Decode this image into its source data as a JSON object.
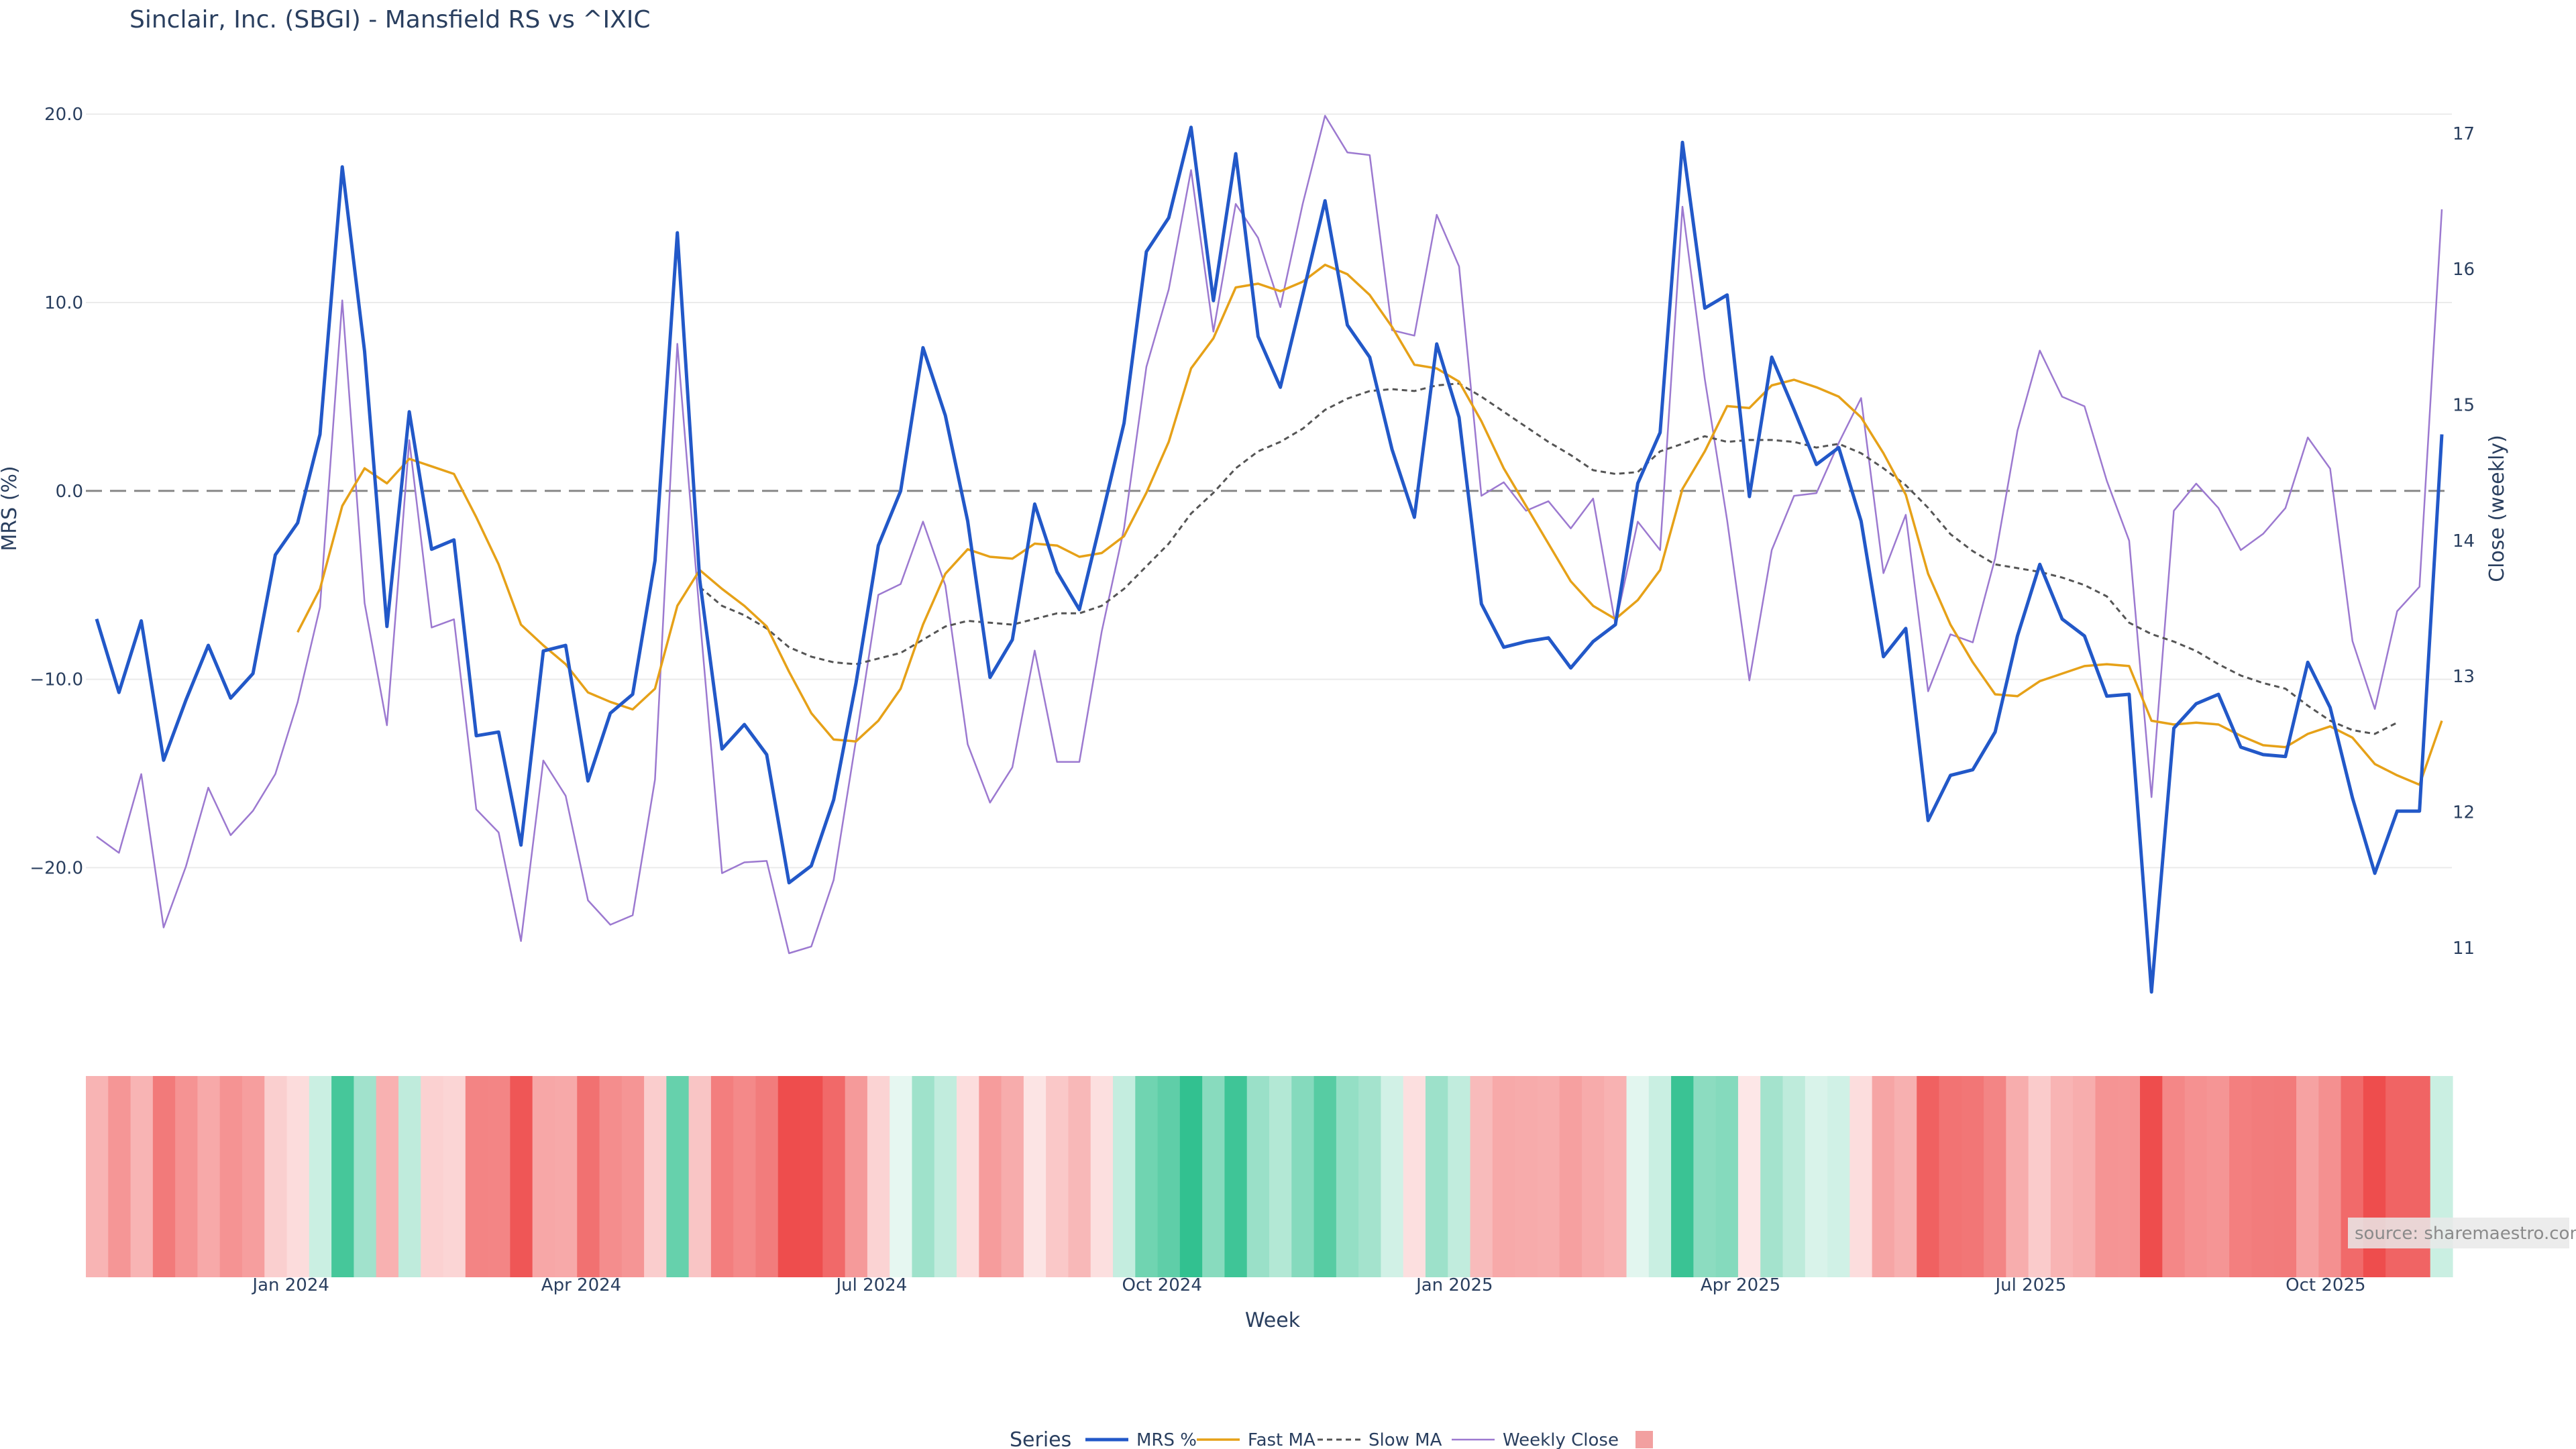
{
  "chart_data": {
    "type": "line",
    "title": "Sinclair, Inc. (SBGI) - Mansfield RS vs ^IXIC",
    "xlabel": "Week",
    "ylabel_left": "MRS (%)",
    "ylabel_right": "Close (weekly)",
    "y_left_ticks": [
      "20.0",
      "10.0",
      "0.0",
      "−10.0",
      "−20.0"
    ],
    "y_left_tick_values": [
      20,
      10,
      0,
      -10,
      -20
    ],
    "y_right_ticks": [
      "17",
      "16",
      "15",
      "14",
      "13",
      "12",
      "11"
    ],
    "y_right_tick_values": [
      17,
      16,
      15,
      14,
      13,
      12,
      11
    ],
    "ylim_left": [
      -27.5,
      21.5
    ],
    "ylim_right": [
      10.55,
      17.35
    ],
    "x_ticks": [
      "Jan 2024",
      "Apr 2024",
      "Jul 2024",
      "Oct 2024",
      "Jan 2025",
      "Apr 2025",
      "Jul 2025",
      "Oct 2025"
    ],
    "x_tick_week_index": [
      8.7,
      21.7,
      34.7,
      47.7,
      60.8,
      73.6,
      86.6,
      99.8
    ],
    "zero_line": 0,
    "grid": true,
    "legend": {
      "title": "Series",
      "position": "bottom-center",
      "entries": [
        "MRS %",
        "Fast MA",
        "Slow MA",
        "Weekly Close",
        ""
      ]
    },
    "source": "source: sharemaestro.com",
    "colors": {
      "mrs": "#2258c8",
      "fast_ma": "#e6a118",
      "slow_ma": "#555555",
      "weekly_close": "#9c79d0",
      "positive": "#2cbf8c",
      "negative": "#ee4d4d"
    },
    "series": [
      {
        "name": "MRS %",
        "values": [
          -6.8,
          -10.7,
          -6.9,
          -14.3,
          -11.1,
          -8.2,
          -11.0,
          -9.7,
          -3.4,
          -1.7,
          3.0,
          17.2,
          7.4,
          -7.2,
          4.2,
          -3.1,
          -2.6,
          -13.0,
          -12.8,
          -18.8,
          -8.5,
          -8.2,
          -15.4,
          -11.8,
          -10.8,
          -3.7,
          13.7,
          -4.7,
          -13.7,
          -12.4,
          -14.0,
          -20.8,
          -19.9,
          -16.4,
          -10.2,
          -2.9,
          0.0,
          7.6,
          4.0,
          -1.6,
          -9.9,
          -7.9,
          -0.7,
          -4.3,
          -6.3,
          -1.4,
          3.6,
          12.7,
          14.5,
          19.3,
          10.1,
          17.9,
          8.2,
          5.5,
          10.4,
          15.4,
          8.8,
          7.1,
          2.2,
          -1.4,
          7.8,
          3.9,
          -6.0,
          -8.3,
          -8.0,
          -7.8,
          -9.4,
          -8.0,
          -7.1,
          0.4,
          3.1,
          18.5,
          9.7,
          10.4,
          -0.3,
          7.1,
          4.3,
          1.4,
          2.3,
          -1.6,
          -8.8,
          -7.3,
          -17.5,
          -15.1,
          -14.8,
          -12.8,
          -7.7,
          -3.9,
          -6.8,
          -7.7,
          -10.9,
          -10.8,
          -26.6,
          -12.6,
          -11.3,
          -10.8,
          -13.6,
          -14.0,
          -14.1,
          -9.1,
          -11.5,
          -16.3,
          -20.3,
          -17.0,
          -17.0,
          3.0
        ]
      },
      {
        "name": "Fast MA",
        "values": [
          null,
          null,
          null,
          null,
          null,
          null,
          null,
          null,
          null,
          -7.5,
          -5.2,
          -0.8,
          1.2,
          0.4,
          1.7,
          1.3,
          0.9,
          -1.4,
          -3.9,
          -7.1,
          -8.2,
          -9.2,
          -10.7,
          -11.2,
          -11.6,
          -10.5,
          -6.1,
          -4.2,
          -5.2,
          -6.1,
          -7.2,
          -9.6,
          -11.8,
          -13.2,
          -13.3,
          -12.2,
          -10.5,
          -7.1,
          -4.4,
          -3.1,
          -3.5,
          -3.6,
          -2.8,
          -2.9,
          -3.5,
          -3.3,
          -2.4,
          -0.1,
          2.6,
          6.5,
          8.1,
          10.8,
          11.0,
          10.6,
          11.1,
          12.0,
          11.5,
          10.4,
          8.7,
          6.7,
          6.5,
          5.8,
          3.7,
          1.2,
          -0.8,
          -2.8,
          -4.8,
          -6.1,
          -6.8,
          -5.8,
          -4.2,
          0.1,
          2.1,
          4.5,
          4.4,
          5.6,
          5.9,
          5.5,
          5.0,
          3.9,
          2.0,
          -0.2,
          -4.4,
          -7.1,
          -9.1,
          -10.8,
          -10.9,
          -10.1,
          -9.7,
          -9.3,
          -9.2,
          -9.3,
          -12.2,
          -12.4,
          -12.3,
          -12.4,
          -13.0,
          -13.5,
          -13.6,
          -12.9,
          -12.5,
          -13.1,
          -14.5,
          -15.1,
          -15.6,
          -12.2
        ]
      },
      {
        "name": "Slow MA",
        "values": [
          null,
          null,
          null,
          null,
          null,
          null,
          null,
          null,
          null,
          null,
          null,
          null,
          null,
          null,
          null,
          null,
          null,
          null,
          null,
          null,
          null,
          null,
          null,
          null,
          null,
          null,
          null,
          -5.1,
          -6.1,
          -6.6,
          -7.3,
          -8.3,
          -8.8,
          -9.1,
          -9.2,
          -8.9,
          -8.6,
          -7.9,
          -7.2,
          -6.9,
          -7.0,
          -7.1,
          -6.8,
          -6.5,
          -6.5,
          -6.1,
          -5.2,
          -4.0,
          -2.8,
          -1.2,
          -0.1,
          1.2,
          2.1,
          2.6,
          3.3,
          4.3,
          4.9,
          5.3,
          5.4,
          5.3,
          5.6,
          5.7,
          5.0,
          4.2,
          3.4,
          2.6,
          1.9,
          1.1,
          0.9,
          1.0,
          2.1,
          2.5,
          2.9,
          2.6,
          2.7,
          2.7,
          2.6,
          2.3,
          2.5,
          2.0,
          1.2,
          0.3,
          -0.9,
          -2.3,
          -3.2,
          -3.9,
          -4.1,
          -4.3,
          -4.6,
          -5.0,
          -5.6,
          -7.0,
          -7.6,
          -8.0,
          -8.5,
          -9.2,
          -9.8,
          -10.2,
          -10.5,
          -11.4,
          -12.2,
          -12.7,
          -12.9,
          -12.3
        ]
      },
      {
        "name": "Weekly Close",
        "values": [
          11.82,
          11.7,
          12.28,
          11.15,
          11.6,
          12.18,
          11.83,
          12.01,
          12.28,
          12.81,
          13.51,
          15.77,
          13.54,
          12.64,
          14.74,
          13.36,
          13.42,
          12.02,
          11.85,
          11.05,
          12.38,
          12.12,
          11.35,
          11.17,
          11.24,
          12.24,
          15.45,
          13.45,
          11.55,
          11.63,
          11.64,
          10.96,
          11.01,
          11.5,
          12.53,
          13.6,
          13.68,
          14.14,
          13.67,
          12.5,
          12.07,
          12.33,
          13.19,
          12.37,
          12.37,
          13.33,
          14.09,
          15.28,
          15.85,
          16.73,
          15.54,
          16.48,
          16.23,
          15.72,
          16.48,
          17.13,
          16.86,
          16.84,
          15.55,
          15.51,
          16.4,
          16.02,
          14.33,
          14.43,
          14.22,
          14.29,
          14.09,
          14.31,
          13.38,
          14.14,
          13.93,
          16.46,
          15.19,
          14.15,
          12.97,
          13.93,
          14.33,
          14.35,
          14.72,
          15.05,
          13.76,
          14.19,
          12.89,
          13.31,
          13.25,
          13.87,
          14.81,
          15.4,
          15.06,
          14.99,
          14.44,
          14.0,
          12.11,
          14.22,
          14.42,
          14.24,
          13.93,
          14.05,
          14.24,
          14.76,
          14.53,
          13.26,
          12.76,
          13.48,
          13.66,
          16.44
        ]
      }
    ],
    "heatmap": {
      "name": "",
      "description_values_source": "MRS %",
      "scale": [
        -20,
        20
      ]
    }
  }
}
